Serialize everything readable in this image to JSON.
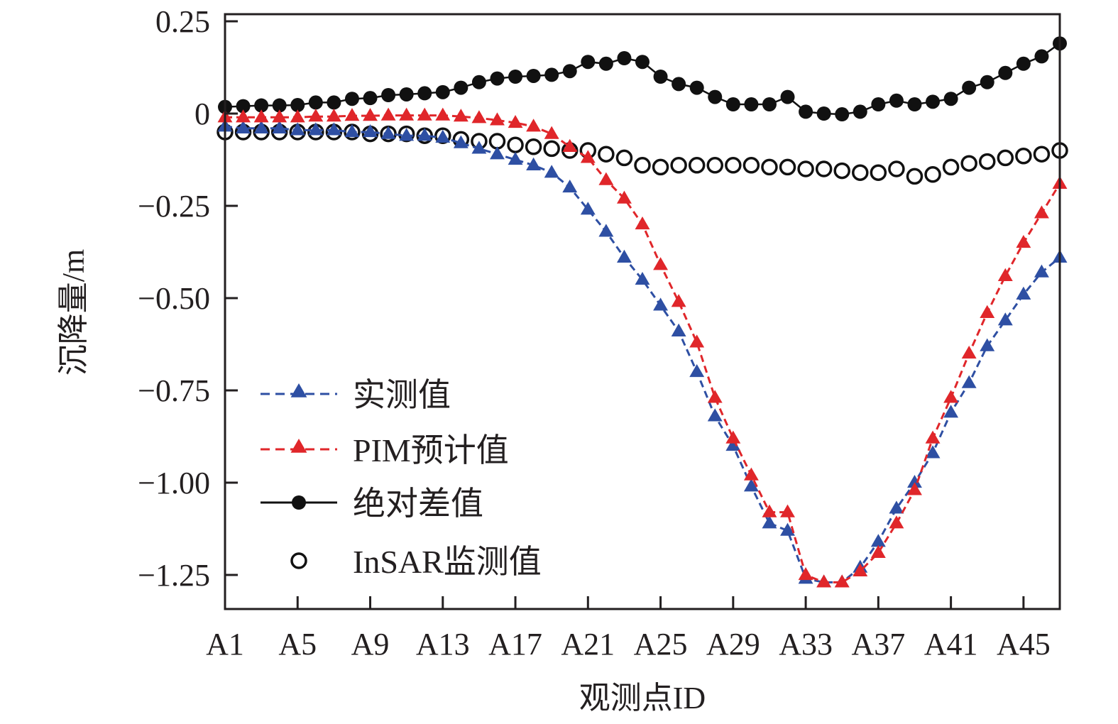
{
  "chart_data": {
    "type": "line",
    "title": "",
    "xlabel": "观测点ID",
    "ylabel": "沉降量/m",
    "ylim": [
      -1.325,
      0.265
    ],
    "yticks": [
      0.25,
      0,
      -0.25,
      -0.5,
      -0.75,
      -1.0,
      -1.25
    ],
    "ytick_labels": [
      "0.25",
      "0",
      "−0.25",
      "−0.50",
      "−0.75",
      "−1.00",
      "−1.25"
    ],
    "x": [
      "A1",
      "A2",
      "A3",
      "A4",
      "A5",
      "A6",
      "A7",
      "A8",
      "A9",
      "A10",
      "A11",
      "A12",
      "A13",
      "A14",
      "A15",
      "A16",
      "A17",
      "A18",
      "A19",
      "A20",
      "A21",
      "A22",
      "A23",
      "A24",
      "A25",
      "A26",
      "A27",
      "A28",
      "A29",
      "A30",
      "A31",
      "A32",
      "A33",
      "A34",
      "A35",
      "A36",
      "A37",
      "A38",
      "A39",
      "A40",
      "A41",
      "A42",
      "A43",
      "A44",
      "A45",
      "A46",
      "A47"
    ],
    "xtick_labels": [
      "A1",
      "A5",
      "A9",
      "A13",
      "A17",
      "A21",
      "A25",
      "A29",
      "A33",
      "A37",
      "A41",
      "A45"
    ],
    "grid": false,
    "legend_position": "lower-left",
    "series": [
      {
        "name": "实测值",
        "color": "#2e4fa3",
        "line": "dashed",
        "marker": "triangle",
        "values": [
          -0.035,
          -0.04,
          -0.04,
          -0.04,
          -0.045,
          -0.045,
          -0.045,
          -0.05,
          -0.05,
          -0.055,
          -0.06,
          -0.06,
          -0.065,
          -0.08,
          -0.095,
          -0.11,
          -0.125,
          -0.14,
          -0.16,
          -0.2,
          -0.26,
          -0.32,
          -0.39,
          -0.45,
          -0.52,
          -0.59,
          -0.7,
          -0.82,
          -0.9,
          -1.01,
          -1.11,
          -1.13,
          -1.26,
          -1.27,
          -1.27,
          -1.23,
          -1.16,
          -1.07,
          -1.0,
          -0.92,
          -0.81,
          -0.73,
          -0.63,
          -0.56,
          -0.49,
          -0.43,
          -0.39
        ]
      },
      {
        "name": "PIM预计值",
        "color": "#e0262a",
        "line": "dashed",
        "marker": "triangle",
        "values": [
          -0.01,
          -0.01,
          -0.01,
          -0.01,
          -0.01,
          -0.008,
          -0.008,
          -0.006,
          -0.006,
          -0.005,
          -0.005,
          -0.005,
          -0.005,
          -0.008,
          -0.012,
          -0.018,
          -0.025,
          -0.035,
          -0.055,
          -0.09,
          -0.12,
          -0.18,
          -0.23,
          -0.3,
          -0.41,
          -0.51,
          -0.62,
          -0.77,
          -0.88,
          -0.98,
          -1.08,
          -1.08,
          -1.25,
          -1.27,
          -1.27,
          -1.24,
          -1.19,
          -1.11,
          -1.02,
          -0.88,
          -0.77,
          -0.65,
          -0.54,
          -0.44,
          -0.35,
          -0.27,
          -0.19
        ]
      },
      {
        "name": "绝对差值",
        "color": "#111111",
        "line": "solid",
        "marker": "filled-circle",
        "values": [
          0.018,
          0.02,
          0.022,
          0.022,
          0.023,
          0.03,
          0.03,
          0.04,
          0.042,
          0.05,
          0.052,
          0.055,
          0.058,
          0.07,
          0.085,
          0.095,
          0.1,
          0.102,
          0.105,
          0.115,
          0.14,
          0.135,
          0.15,
          0.14,
          0.1,
          0.08,
          0.07,
          0.045,
          0.025,
          0.025,
          0.025,
          0.045,
          0.005,
          0.0,
          -0.002,
          0.005,
          0.025,
          0.035,
          0.025,
          0.032,
          0.04,
          0.07,
          0.085,
          0.11,
          0.135,
          0.155,
          0.19
        ]
      },
      {
        "name": "InSAR监测值",
        "color": "#111111",
        "line": "none",
        "marker": "open-circle",
        "values": [
          -0.05,
          -0.05,
          -0.05,
          -0.05,
          -0.05,
          -0.05,
          -0.05,
          -0.05,
          -0.055,
          -0.055,
          -0.055,
          -0.06,
          -0.06,
          -0.07,
          -0.075,
          -0.075,
          -0.085,
          -0.09,
          -0.095,
          -0.1,
          -0.1,
          -0.11,
          -0.12,
          -0.14,
          -0.145,
          -0.14,
          -0.14,
          -0.14,
          -0.14,
          -0.14,
          -0.145,
          -0.145,
          -0.15,
          -0.15,
          -0.155,
          -0.16,
          -0.16,
          -0.15,
          -0.17,
          -0.165,
          -0.145,
          -0.135,
          -0.13,
          -0.12,
          -0.115,
          -0.11,
          -0.1
        ]
      }
    ]
  }
}
